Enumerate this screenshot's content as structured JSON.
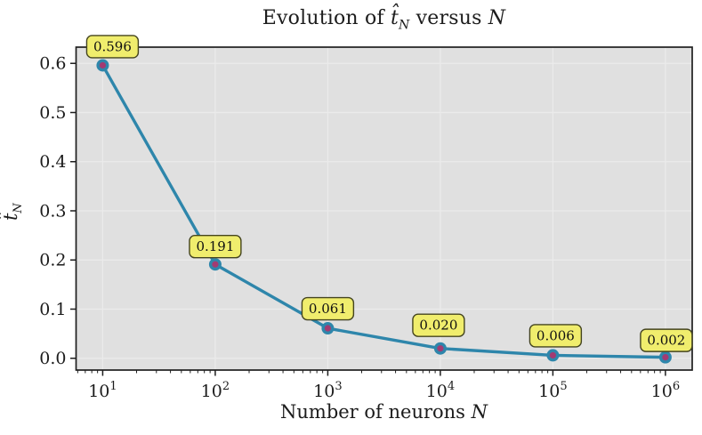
{
  "title": {
    "parts": [
      "Evolution of ",
      "t̂",
      "N",
      " versus ",
      "N"
    ]
  },
  "x_axis": {
    "label_parts": [
      "Number of neurons ",
      "N"
    ],
    "tick_base": "10",
    "tick_exponents": [
      "1",
      "2",
      "3",
      "4",
      "5",
      "6"
    ]
  },
  "y_axis": {
    "label_parts": [
      "t̂",
      "N"
    ],
    "ticks": [
      "0.0",
      "0.1",
      "0.2",
      "0.3",
      "0.4",
      "0.5",
      "0.6"
    ]
  },
  "chart_data": {
    "type": "line",
    "title": "Evolution of t̂_N versus N",
    "xlabel": "Number of neurons N",
    "ylabel": "t̂_N",
    "x_scale": "log",
    "x": [
      10,
      100,
      1000,
      10000,
      100000,
      1000000
    ],
    "y": [
      0.596,
      0.191,
      0.061,
      0.02,
      0.006,
      0.002
    ],
    "point_labels": [
      "0.596",
      "0.191",
      "0.061",
      "0.020",
      "0.006",
      "0.002"
    ],
    "xlim": [
      5.8,
      1730000
    ],
    "ylim": [
      -0.024,
      0.633
    ],
    "grid": true,
    "legend": "none",
    "colors": {
      "line": "#2e86ab",
      "marker_face": "#a23b72",
      "marker_edge": "#2e86ab",
      "annotation_bg": "#f0ed6d",
      "annotation_border": "#44441f",
      "annotation_text": "#111111",
      "plot_bg": "#e0e0e0",
      "grid": "#ebebeb",
      "spine": "#1f1f1f",
      "tick_text": "#1c1c1c",
      "figure_bg": "#ffffff"
    }
  }
}
